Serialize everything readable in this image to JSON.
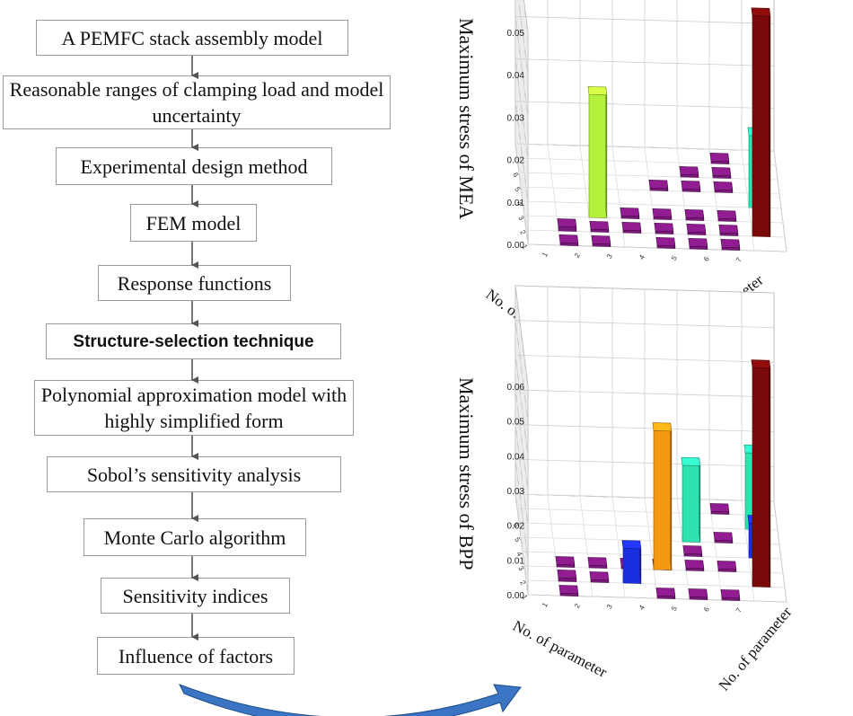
{
  "flowchart": {
    "steps": [
      {
        "label": "A PEMFC stack assembly model"
      },
      {
        "label": "Reasonable ranges of clamping load and model uncertainty"
      },
      {
        "label": "Experimental design method"
      },
      {
        "label": "FEM model"
      },
      {
        "label": "Response functions"
      },
      {
        "label": "Structure-selection technique"
      },
      {
        "label": "Polynomial approximation model with highly simplified form"
      },
      {
        "label": "Sobol’s sensitivity analysis"
      },
      {
        "label": "Monte Carlo algorithm"
      },
      {
        "label": "Sensitivity indices"
      },
      {
        "label": "Influence of factors"
      }
    ]
  },
  "colors": {
    "box_border": "#9a9a9a",
    "arrow": "#555555",
    "curved_arrow": "#2f6db5",
    "purple": "#7a177a",
    "dark_red": "#7a0a0a",
    "lime": "#b5f03c",
    "mint": "#2fe3b0",
    "orange": "#f39a12",
    "blue": "#1c2fe0"
  },
  "chart_data": [
    {
      "type": "bar3d",
      "ylabel": "Maximum stress of MEA",
      "xlabel": "No. of parameter",
      "zlabel": "No. of parameter",
      "z_ticks": [
        "0.00",
        "0.01",
        "0.02",
        "0.03",
        "0.04",
        "0.05"
      ],
      "x_ticks": [
        "1",
        "2",
        "3",
        "4",
        "5",
        "6"
      ],
      "y_ticks": [
        "1",
        "2",
        "3",
        "4",
        "5",
        "6",
        "7"
      ],
      "grid": true,
      "bars": [
        {
          "x": 1,
          "y": 1,
          "value": 0.001,
          "color": "purple"
        },
        {
          "x": 2,
          "y": 2,
          "value": 0.029,
          "color": "lime"
        },
        {
          "x": 1,
          "y": 7,
          "value": 0.052,
          "color": "dark_red"
        },
        {
          "x": 3,
          "y": 7,
          "value": 0.017,
          "color": "mint"
        }
      ]
    },
    {
      "type": "bar3d",
      "ylabel": "Maximum stress of BPP",
      "xlabel": "No. of parameter",
      "zlabel": "No. of parameter",
      "z_ticks": [
        "0.00",
        "0.01",
        "0.02",
        "0.03",
        "0.04",
        "0.05",
        "0.06"
      ],
      "x_ticks": [
        "1",
        "2",
        "3",
        "4",
        "5",
        "6"
      ],
      "y_ticks": [
        "1",
        "2",
        "3",
        "4",
        "5",
        "6",
        "7"
      ],
      "grid": true,
      "bars": [
        {
          "x": 1,
          "y": 1,
          "value": 0.001,
          "color": "purple"
        },
        {
          "x": 1,
          "y": 3,
          "value": 0.01,
          "color": "blue"
        },
        {
          "x": 2,
          "y": 4,
          "value": 0.04,
          "color": "orange"
        },
        {
          "x": 1,
          "y": 7,
          "value": 0.063,
          "color": "dark_red"
        },
        {
          "x": 4,
          "y": 5,
          "value": 0.022,
          "color": "mint"
        },
        {
          "x": 5,
          "y": 7,
          "value": 0.022,
          "color": "mint"
        },
        {
          "x": 3,
          "y": 7,
          "value": 0.01,
          "color": "blue"
        }
      ]
    }
  ]
}
